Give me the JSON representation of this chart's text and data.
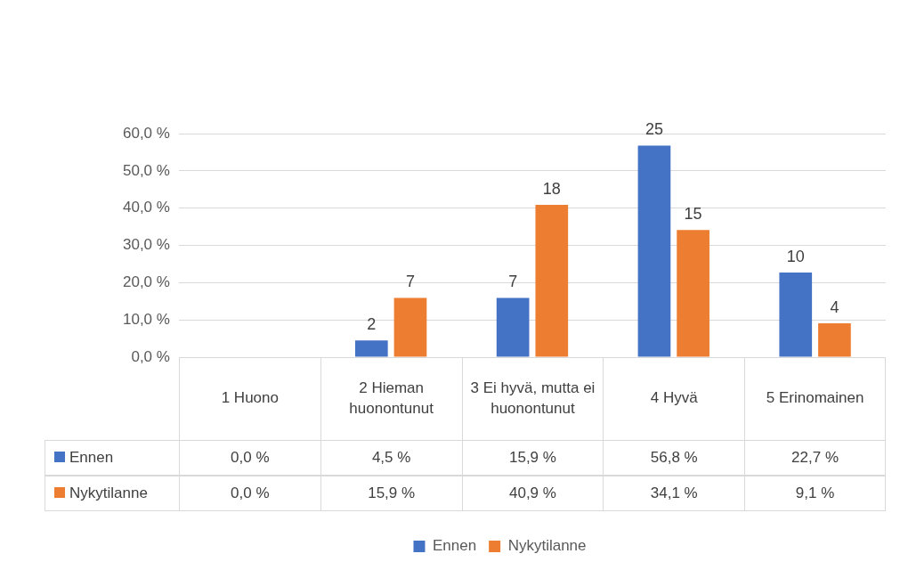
{
  "chart_data": {
    "type": "bar",
    "categories": [
      "1 Huono",
      "2 Hieman huonontunut",
      "3 Ei hyvä, mutta ei huonontunut",
      "4 Hyvä",
      "5 Erinomainen"
    ],
    "series": [
      {
        "name": "Ennen",
        "color": "#4472c4",
        "values": [
          0.0,
          4.5,
          15.9,
          56.8,
          22.7
        ],
        "value_labels": [
          "0,0 %",
          "4,5 %",
          "15,9 %",
          "56,8 %",
          "22,7 %"
        ]
      },
      {
        "name": "Nykytilanne",
        "color": "#ed7d31",
        "values": [
          0.0,
          15.9,
          40.9,
          34.1,
          9.1
        ],
        "value_labels": [
          "0,0 %",
          "15,9 %",
          "40,9 %",
          "34,1 %",
          "9,1 %"
        ]
      }
    ],
    "annotations": [
      {
        "text": "2",
        "x": "2 Hieman huonontunut",
        "y": 4.5
      },
      {
        "text": "7",
        "x": "2 Hieman huonontunut",
        "y": 15.9
      },
      {
        "text": "7",
        "x": "3 Ei hyvä, mutta ei huonontunut",
        "y": 15.9
      },
      {
        "text": "18",
        "x": "3 Ei hyvä, mutta ei huonontunut",
        "y": 40.9
      },
      {
        "text": "25",
        "x": "4 Hyvä",
        "y": 56.8
      },
      {
        "text": "15",
        "x": "4 Hyvä",
        "y": 34.1
      },
      {
        "text": "10",
        "x": "5 Erinomainen",
        "y": 22.7
      },
      {
        "text": "4",
        "x": "5 Erinomainen",
        "y": 9.1
      }
    ],
    "ylim": [
      0,
      60
    ],
    "yticks": [
      {
        "value": 0,
        "label": "0,0 %"
      },
      {
        "value": 10,
        "label": "10,0 %"
      },
      {
        "value": 20,
        "label": "20,0 %"
      },
      {
        "value": 30,
        "label": "30,0 %"
      },
      {
        "value": 40,
        "label": "40,0 %"
      },
      {
        "value": 50,
        "label": "50,0 %"
      },
      {
        "value": 60,
        "label": "60,0 %"
      }
    ],
    "grid": "y",
    "legend": "bottom"
  }
}
